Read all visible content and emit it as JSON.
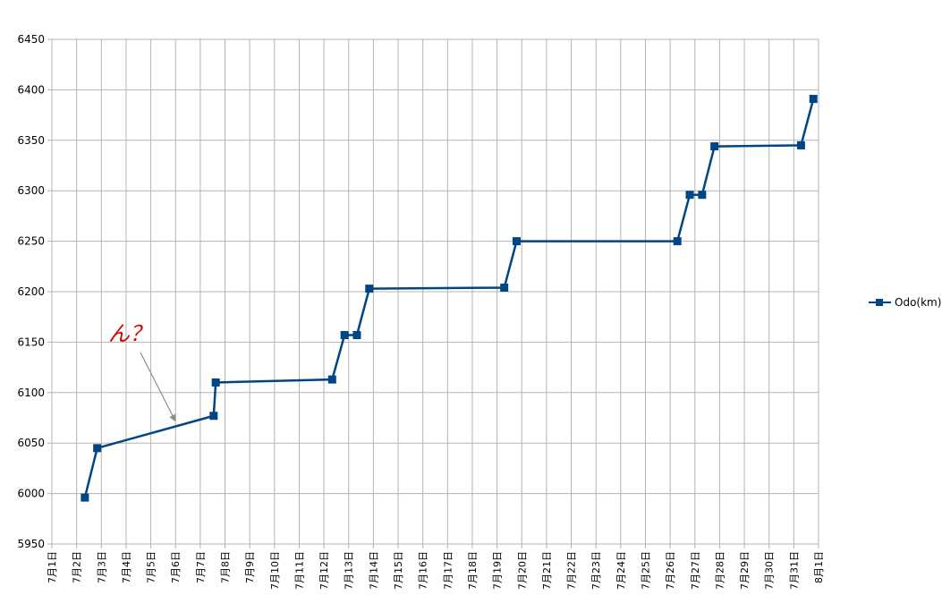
{
  "chart_data": {
    "type": "line",
    "x_axis_type": "date",
    "y_ticks": [
      5950,
      6000,
      6050,
      6100,
      6150,
      6200,
      6250,
      6300,
      6350,
      6400,
      6450
    ],
    "ylim": [
      5950,
      6450
    ],
    "x_tick_labels": [
      "7月1日",
      "7月2日",
      "7月3日",
      "7月4日",
      "7月5日",
      "7月6日",
      "7月7日",
      "7月8日",
      "7月9日",
      "7月10日",
      "7月11日",
      "7月12日",
      "7月13日",
      "7月14日",
      "7月15日",
      "7月16日",
      "7月17日",
      "7月18日",
      "7月19日",
      "7月20日",
      "7月21日",
      "7月22日",
      "7月23日",
      "7月24日",
      "7月25日",
      "7月26日",
      "7月27日",
      "7月28日",
      "7月29日",
      "7月30日",
      "7月31日",
      "8月1日"
    ],
    "grid": "both",
    "legend_position": "right",
    "series": [
      {
        "name": "Odo(km)",
        "color": "#004586",
        "marker": "square",
        "points": [
          {
            "x": "7/2 08:00",
            "y": 5996
          },
          {
            "x": "7/2 20:00",
            "y": 6045
          },
          {
            "x": "7/7 13:00",
            "y": 6077
          },
          {
            "x": "7/7 15:00",
            "y": 6110
          },
          {
            "x": "7/12 08:00",
            "y": 6113
          },
          {
            "x": "7/12 20:00",
            "y": 6157
          },
          {
            "x": "7/13 08:00",
            "y": 6157
          },
          {
            "x": "7/13 20:00",
            "y": 6203
          },
          {
            "x": "7/19 07:00",
            "y": 6204
          },
          {
            "x": "7/19 19:00",
            "y": 6250
          },
          {
            "x": "7/26 07:00",
            "y": 6250
          },
          {
            "x": "7/26 19:00",
            "y": 6296
          },
          {
            "x": "7/27 07:00",
            "y": 6296
          },
          {
            "x": "7/27 19:00",
            "y": 6344
          },
          {
            "x": "7/31 07:00",
            "y": 6345
          },
          {
            "x": "7/31 19:00",
            "y": 6391
          }
        ]
      }
    ],
    "annotations": [
      {
        "text": "ん？",
        "color": "#d60000",
        "arrow_to": {
          "x": "7/5 06:00",
          "y": 6070
        }
      }
    ]
  }
}
